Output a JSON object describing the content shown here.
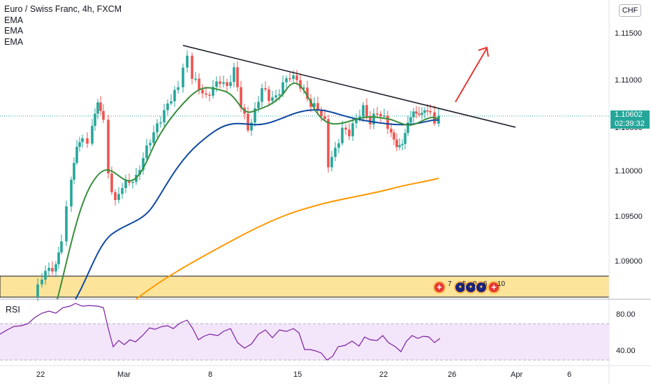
{
  "legend": {
    "symbol": "Euro / Swiss Franc, 4h, FXCM",
    "ema1": "EMA",
    "ema2": "EMA",
    "ema3": "EMA"
  },
  "currency_button": "CHF",
  "rsi_label": "RSI",
  "price_tag": {
    "value": "1.10602",
    "countdown": "02:39:32"
  },
  "events": [
    {
      "icon": "swiss-flag-icon",
      "count": "7"
    },
    {
      "icon": "eu-flag-icon",
      "count": "5"
    },
    {
      "icon": "eu-flag-icon",
      "count": "0"
    },
    {
      "icon": "eu-flag-icon",
      "count": "6"
    },
    {
      "icon": "swiss-flag-icon",
      "count": "10"
    }
  ],
  "colors": {
    "up": "#26a69a",
    "down": "#ef5350",
    "ema_fast": "#388e3c",
    "ema_mid": "#0d47a1",
    "ema_slow": "#ff9800",
    "rsi": "#7b1fa2",
    "arrow": "#e53935",
    "zone": "#fde49b"
  },
  "chart_data": [
    {
      "type": "candlestick",
      "title": "Euro / Swiss Franc, 4h, FXCM",
      "x_ticks": [
        "22",
        "Mar",
        "8",
        "15",
        "22",
        "26",
        "Apr",
        "6"
      ],
      "y_ticks": [
        "1.09000",
        "1.09500",
        "1.10000",
        "1.10500",
        "1.11000",
        "1.11500"
      ],
      "ylim": [
        1.0866,
        1.1182
      ],
      "last_price": 1.10602,
      "grid": false,
      "series": [
        {
          "name": "EMA",
          "kind": "fast",
          "points": [
            [
              0,
              1.0855
            ],
            [
              1.5,
              1.089
            ],
            [
              2.7,
              1.0935
            ],
            [
              3.8,
              1.0985
            ],
            [
              5.0,
              1.1
            ],
            [
              6.6,
              1.102
            ],
            [
              8.2,
              1.106
            ],
            [
              9.8,
              1.1087
            ],
            [
              11.2,
              1.1097
            ],
            [
              12.5,
              1.1095
            ],
            [
              13.7,
              1.108
            ],
            [
              14.5,
              1.1065
            ],
            [
              15.8,
              1.108
            ],
            [
              17.0,
              1.109
            ],
            [
              18.4,
              1.1095
            ],
            [
              19.6,
              1.108
            ],
            [
              20.6,
              1.106
            ],
            [
              21.8,
              1.1055
            ],
            [
              22.8,
              1.1055
            ],
            [
              23.8,
              1.106
            ],
            [
              25.0,
              1.105
            ],
            [
              26.0,
              1.1055
            ],
            [
              27.5,
              1.106
            ]
          ]
        },
        {
          "name": "EMA",
          "kind": "mid",
          "points": [
            [
              2.0,
              1.0855
            ],
            [
              3.3,
              1.091
            ],
            [
              4.6,
              1.094
            ],
            [
              6.0,
              1.0955
            ],
            [
              7.4,
              1.0985
            ],
            [
              8.8,
              1.1015
            ],
            [
              10.2,
              1.103
            ],
            [
              11.8,
              1.1045
            ],
            [
              13.5,
              1.1055
            ],
            [
              15.3,
              1.1062
            ],
            [
              16.8,
              1.1068
            ],
            [
              18.4,
              1.1075
            ],
            [
              19.8,
              1.1075
            ],
            [
              21.0,
              1.1065
            ],
            [
              22.4,
              1.1058
            ],
            [
              23.8,
              1.1057
            ],
            [
              25.2,
              1.1058
            ],
            [
              26.2,
              1.1055
            ],
            [
              27.5,
              1.106
            ]
          ]
        },
        {
          "name": "EMA",
          "kind": "slow",
          "points": [
            [
              8.0,
              1.0855
            ],
            [
              9.2,
              1.087
            ],
            [
              11.0,
              1.089
            ],
            [
              12.8,
              1.091
            ],
            [
              14.3,
              1.0925
            ],
            [
              16.0,
              1.094
            ],
            [
              17.6,
              1.0952
            ],
            [
              19.0,
              1.096
            ],
            [
              20.5,
              1.0965
            ],
            [
              22.0,
              1.0972
            ],
            [
              23.5,
              1.098
            ],
            [
              25.0,
              1.0983
            ],
            [
              26.5,
              1.0988
            ],
            [
              27.5,
              1.0991
            ]
          ]
        }
      ],
      "annotations": {
        "trendline": [
          [
            11.5,
            1.114
          ],
          [
            32.2,
            1.1037
          ]
        ],
        "breakout_arrow": [
          [
            28.5,
            1.1074
          ],
          [
            30.5,
            1.1136
          ]
        ],
        "support_zone": [
          1.0865,
          1.0884
        ]
      }
    },
    {
      "type": "line",
      "title": "RSI",
      "y_ticks": [
        "40.00",
        "80.00"
      ],
      "ylim": [
        25,
        95
      ],
      "bands": [
        30,
        70
      ],
      "series": [
        {
          "name": "RSI",
          "values": [
            [
              0,
              50
            ],
            [
              1,
              55
            ],
            [
              2,
              63
            ],
            [
              3,
              66
            ],
            [
              4,
              78
            ],
            [
              5,
              86
            ],
            [
              6,
              91
            ],
            [
              7,
              89
            ],
            [
              8,
              87
            ],
            [
              8.5,
              85
            ],
            [
              9,
              65
            ],
            [
              10,
              64
            ],
            [
              11,
              60
            ],
            [
              12,
              70
            ],
            [
              13,
              66
            ],
            [
              14,
              67
            ],
            [
              15,
              68
            ],
            [
              16,
              52
            ],
            [
              17,
              53
            ],
            [
              18,
              55
            ],
            [
              19,
              51
            ],
            [
              20,
              53
            ],
            [
              21,
              49
            ],
            [
              22,
              50
            ],
            [
              23,
              55
            ],
            [
              24,
              54
            ],
            [
              25,
              58
            ],
            [
              26,
              52
            ],
            [
              27,
              54
            ]
          ]
        }
      ]
    }
  ]
}
